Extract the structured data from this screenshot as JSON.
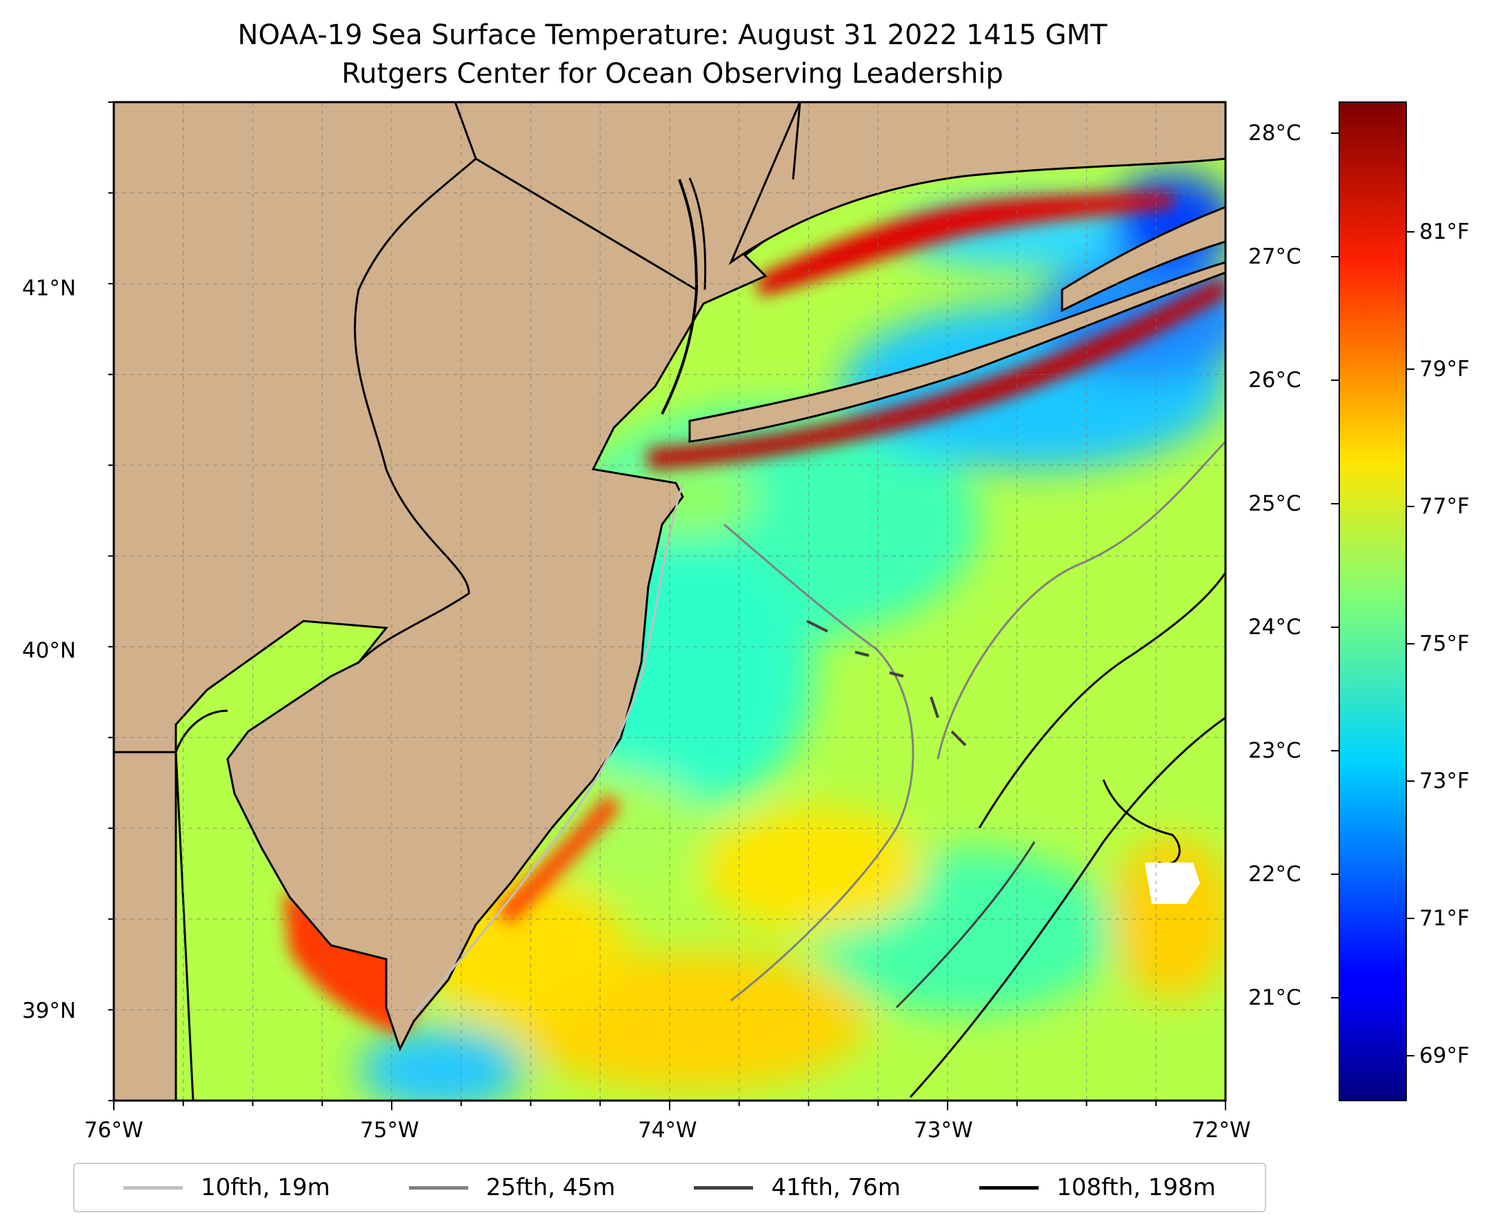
{
  "title_line1": "NOAA-19 Sea Surface Temperature: August 31 2022 1415 GMT",
  "title_line2": "Rutgers Center for Ocean Observing Leadership",
  "map": {
    "lon_range": [
      -76,
      -72
    ],
    "lat_range": [
      38.75,
      41.5
    ],
    "land_color": "#d1b18b",
    "lon_ticks": [
      "76°W",
      "75°W",
      "74°W",
      "73°W",
      "72°W"
    ],
    "lat_ticks": [
      "41°N",
      "40°N",
      "39°N"
    ],
    "gridlines": true
  },
  "colorbar": {
    "colormap": "jet",
    "celsius_ticks": [
      "28°C",
      "27°C",
      "26°C",
      "25°C",
      "24°C",
      "23°C",
      "22°C",
      "21°C"
    ],
    "fahrenheit_ticks": [
      "81°F",
      "79°F",
      "77°F",
      "75°F",
      "73°F",
      "71°F",
      "69°F"
    ]
  },
  "legend": [
    {
      "label": "10fth, 19m",
      "color": "#bfbfbf"
    },
    {
      "label": "25fth, 45m",
      "color": "#808080"
    },
    {
      "label": "41fth, 76m",
      "color": "#404040"
    },
    {
      "label": "108fth, 198m",
      "color": "#000000"
    }
  ]
}
